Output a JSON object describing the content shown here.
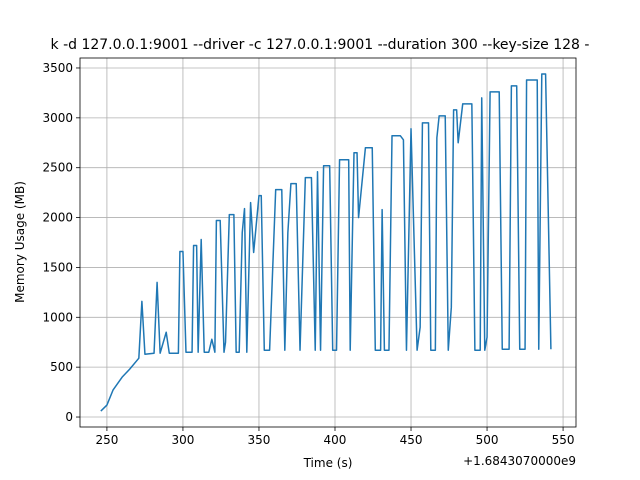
{
  "chart_data": {
    "type": "line",
    "title": "k -d 127.0.0.1:9001 --driver -c 127.0.0.1:9001 --duration 300 --key-size 128 -",
    "x_label": "Time (s)",
    "y_label": "Memory Usage (MB)",
    "x_offset_label": "+1.6843070000e9",
    "xlim": [
      232.3,
      558.5
    ],
    "ylim": [
      -100,
      3600
    ],
    "xticks": [
      250,
      300,
      350,
      400,
      450,
      500,
      550
    ],
    "yticks": [
      0,
      500,
      1000,
      1500,
      2000,
      2500,
      3000,
      3500
    ],
    "grid": true,
    "x": [
      246,
      250,
      254,
      260,
      265,
      271,
      273,
      275,
      281,
      283,
      285,
      289,
      291,
      297,
      298,
      300,
      302,
      306,
      307,
      309,
      310,
      312,
      314,
      317,
      319,
      321,
      322,
      324.5,
      327,
      328,
      330.5,
      333.5,
      335,
      337,
      339,
      340.5,
      342,
      344.5,
      346.5,
      350,
      351.5,
      353.5,
      357,
      361,
      365,
      367,
      369,
      371,
      374.5,
      377,
      380.5,
      384.5,
      387,
      388.5,
      390.5,
      392.5,
      396.5,
      398.5,
      401,
      403,
      409,
      410,
      412.5,
      414.5,
      415.5,
      420,
      424.5,
      426.5,
      430,
      431,
      432.5,
      435.5,
      437.5,
      443,
      445,
      447,
      450,
      454,
      456,
      457.5,
      461.5,
      463,
      466,
      467,
      468.5,
      472.5,
      474.5,
      476.5,
      478,
      480,
      481,
      484,
      490,
      492,
      495.5,
      496.5,
      498.5,
      500,
      502,
      508,
      510,
      514.5,
      516,
      519.5,
      521.5,
      525,
      526,
      533,
      534,
      536,
      538.5,
      542
    ],
    "series": [
      {
        "name": "Memory Usage (MB)",
        "color": "#1f77b4",
        "values": [
          60,
          120,
          270,
          400,
          480,
          590,
          1160,
          630,
          640,
          1350,
          640,
          850,
          640,
          640,
          1660,
          1660,
          650,
          650,
          1720,
          1720,
          650,
          1780,
          650,
          650,
          780,
          650,
          1970,
          1970,
          650,
          750,
          2030,
          2030,
          650,
          650,
          1850,
          2090,
          650,
          2150,
          1650,
          2220,
          2220,
          670,
          670,
          2280,
          2280,
          670,
          1850,
          2340,
          2340,
          670,
          2400,
          2400,
          670,
          2460,
          670,
          2520,
          2520,
          670,
          670,
          2580,
          2580,
          670,
          2650,
          2650,
          2000,
          2700,
          2700,
          670,
          670,
          2080,
          670,
          670,
          2820,
          2820,
          2780,
          670,
          2890,
          670,
          900,
          2950,
          2950,
          670,
          670,
          2800,
          3020,
          3020,
          670,
          1100,
          3080,
          3080,
          2750,
          3140,
          3140,
          670,
          670,
          3200,
          670,
          800,
          3260,
          3260,
          680,
          680,
          3320,
          3320,
          680,
          680,
          3380,
          3380,
          680,
          3440,
          3440,
          680
        ]
      }
    ]
  }
}
